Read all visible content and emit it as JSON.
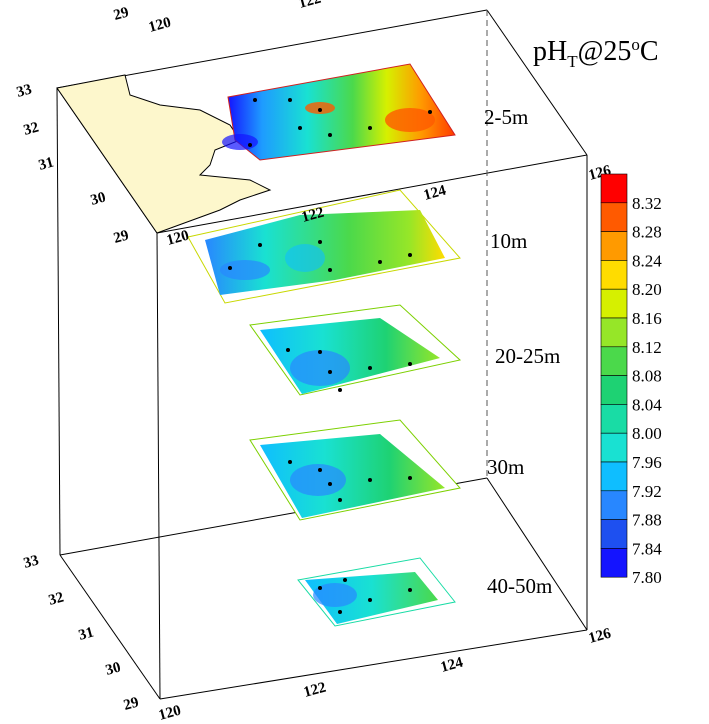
{
  "chart_data": {
    "type": "heatmap",
    "title": "pHT@25oC",
    "title_parts": {
      "base": "pH",
      "sub": "T",
      "at": "@25",
      "sup": "o",
      "unit": "C"
    },
    "colorbar": {
      "values": [
        "8.32",
        "8.28",
        "8.24",
        "8.20",
        "8.16",
        "8.12",
        "8.08",
        "8.04",
        "8.00",
        "7.96",
        "7.92",
        "7.88",
        "7.84",
        "7.80"
      ],
      "colors": [
        "#ff0000",
        "#ff5a00",
        "#ff9a00",
        "#ffdc00",
        "#d6f000",
        "#96e628",
        "#4bd94b",
        "#1ed273",
        "#19dca5",
        "#19e1d2",
        "#0fbeff",
        "#2887ff",
        "#1e50f0",
        "#1414ff"
      ]
    },
    "longitude_ticks": [
      "120",
      "122",
      "124",
      "126"
    ],
    "latitude_ticks": [
      "29",
      "30",
      "31",
      "32",
      "33"
    ],
    "top_edge_ticks": [
      "29",
      "120",
      "122"
    ],
    "layers": [
      {
        "label": "2-5m",
        "value_range": [
          7.8,
          8.32
        ]
      },
      {
        "label": "10m",
        "value_range": [
          7.88,
          8.22
        ]
      },
      {
        "label": "20-25m",
        "value_range": [
          7.88,
          8.12
        ]
      },
      {
        "label": "30m",
        "value_range": [
          7.88,
          8.12
        ]
      },
      {
        "label": "40-50m",
        "value_range": [
          7.88,
          8.08
        ]
      }
    ]
  }
}
